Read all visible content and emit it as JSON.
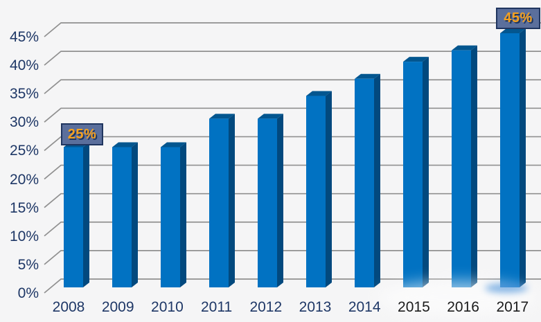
{
  "chart_data": {
    "type": "bar",
    "style": "3d-column",
    "title": "",
    "xlabel": "",
    "ylabel": "",
    "categories": [
      "2008",
      "2009",
      "2010",
      "2011",
      "2012",
      "2013",
      "2014",
      "2015",
      "2016",
      "2017"
    ],
    "values": [
      25,
      25,
      25,
      30,
      30,
      34,
      37,
      40,
      42,
      45
    ],
    "unit": "%",
    "ylim": [
      0,
      45
    ],
    "ytick_step": 5,
    "ytick_labels": [
      "0%",
      "5%",
      "10%",
      "15%",
      "20%",
      "25%",
      "30%",
      "35%",
      "40%",
      "45%"
    ],
    "grid": true,
    "legend_position": "none",
    "annotations": [
      {
        "category": "2008",
        "label": "25%"
      },
      {
        "category": "2017",
        "label": "45%"
      }
    ]
  },
  "colors": {
    "background": "#f5f5f6",
    "bar_front": "#0172c2",
    "bar_side": "#02497e",
    "bar_top": "#03568f",
    "gridline": "#909090",
    "axis_label": "#1e3766",
    "late_year_label": "#1b1b1b",
    "callout_bg": "#5b6f9c",
    "callout_border": "#20355f",
    "callout_text": "#f7a11d"
  },
  "category_label_colors": [
    "#1e3766",
    "#1e3766",
    "#1e3766",
    "#1e3766",
    "#1e3766",
    "#1e3766",
    "#1e3766",
    "#1b1b1b",
    "#1b1b1b",
    "#1b1b1b"
  ]
}
